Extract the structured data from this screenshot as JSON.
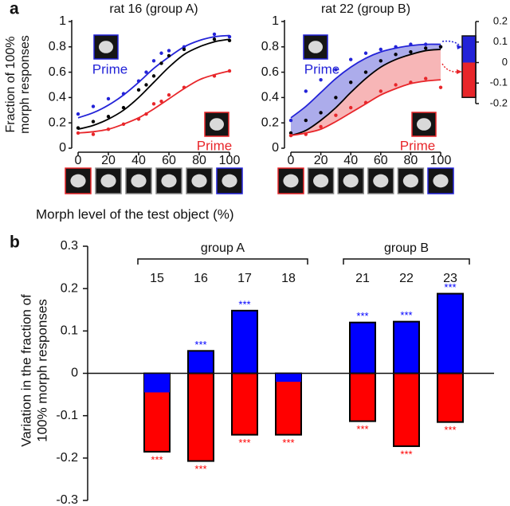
{
  "panels": [
    "a",
    "b"
  ],
  "chart_data": [
    {
      "type": "line",
      "title": "rat 16 (group A)",
      "ylabel": [
        "Fraction of 100%",
        "morph responses"
      ],
      "xlabel": "Morph level of the test object (%)",
      "x": [
        0,
        10,
        20,
        30,
        40,
        45,
        50,
        55,
        60,
        70,
        90,
        100
      ],
      "fit_x": [
        0,
        10,
        20,
        30,
        40,
        50,
        60,
        70,
        80,
        90,
        100
      ],
      "xlim": [
        0,
        100
      ],
      "ylim": [
        0,
        1
      ],
      "xticks": [
        0,
        20,
        40,
        60,
        80,
        100
      ],
      "yticks": [
        0,
        0.2,
        0.4,
        0.6,
        0.8,
        1
      ],
      "shade": false,
      "series": [
        {
          "name": "Prime",
          "color": "#2323d8",
          "values": [
            0.27,
            0.33,
            0.39,
            0.43,
            0.53,
            0.6,
            0.69,
            0.75,
            0.77,
            0.8,
            0.9,
            0.88
          ],
          "fit": [
            0.24,
            0.28,
            0.34,
            0.42,
            0.52,
            0.63,
            0.72,
            0.8,
            0.85,
            0.88,
            0.89
          ]
        },
        {
          "color": "#000000",
          "values": [
            0.16,
            0.21,
            0.25,
            0.32,
            0.46,
            0.5,
            0.57,
            0.67,
            0.73,
            0.78,
            0.86,
            0.85
          ],
          "fit": [
            0.15,
            0.18,
            0.23,
            0.3,
            0.4,
            0.52,
            0.64,
            0.74,
            0.8,
            0.84,
            0.86
          ]
        },
        {
          "name": "Prime",
          "color": "#e8262a",
          "values": [
            0.12,
            0.11,
            0.15,
            0.19,
            0.23,
            0.27,
            0.35,
            0.37,
            0.42,
            0.48,
            0.57,
            0.61
          ],
          "fit": [
            0.12,
            0.13,
            0.15,
            0.19,
            0.24,
            0.31,
            0.39,
            0.47,
            0.54,
            0.58,
            0.61
          ]
        }
      ]
    },
    {
      "type": "line",
      "title": "rat 22 (group B)",
      "x": [
        0,
        10,
        20,
        30,
        40,
        50,
        60,
        70,
        80,
        90,
        100
      ],
      "fit_x": [
        0,
        10,
        20,
        30,
        40,
        50,
        60,
        70,
        80,
        90,
        100
      ],
      "xlim": [
        0,
        100
      ],
      "ylim": [
        0,
        1
      ],
      "xticks": [
        0,
        20,
        40,
        60,
        80,
        100
      ],
      "yticks": [
        0,
        0.2,
        0.4,
        0.6,
        0.8,
        1
      ],
      "shade": true,
      "series": [
        {
          "name": "Prime",
          "color": "#2323d8",
          "shade_color": "#9d9de8",
          "values": [
            0.22,
            0.45,
            0.54,
            0.62,
            0.7,
            0.75,
            0.78,
            0.8,
            0.82,
            0.82,
            0.8
          ],
          "fit": [
            0.24,
            0.33,
            0.44,
            0.55,
            0.64,
            0.71,
            0.76,
            0.79,
            0.81,
            0.82,
            0.82
          ]
        },
        {
          "color": "#000000",
          "values": [
            0.12,
            0.22,
            0.28,
            0.4,
            0.52,
            0.6,
            0.69,
            0.74,
            0.76,
            0.79,
            0.8
          ],
          "fit": [
            0.1,
            0.14,
            0.22,
            0.32,
            0.44,
            0.55,
            0.64,
            0.7,
            0.74,
            0.77,
            0.78
          ]
        },
        {
          "name": "Prime",
          "color": "#e8262a",
          "shade_color": "#f6a9aa",
          "values": [
            0.1,
            0.11,
            0.17,
            0.26,
            0.32,
            0.36,
            0.45,
            0.5,
            0.52,
            0.55,
            0.48
          ],
          "fit": [
            0.1,
            0.12,
            0.15,
            0.21,
            0.28,
            0.35,
            0.42,
            0.47,
            0.51,
            0.53,
            0.54
          ]
        }
      ]
    },
    {
      "type": "colorbar",
      "ylim": [
        -0.2,
        0.2
      ],
      "yticks": [
        0.2,
        0.1,
        0,
        -0.1,
        -0.2
      ],
      "clim": [
        -0.17,
        0.13
      ],
      "colors": [
        "#e8262a",
        "#2323d8"
      ]
    },
    {
      "type": "bar",
      "ylabel": [
        "Variation in the fraction of",
        "100% morph responses"
      ],
      "groups": [
        {
          "name": "group A",
          "categories": [
            "15",
            "16",
            "17",
            "18"
          ]
        },
        {
          "name": "group B",
          "categories": [
            "21",
            "22",
            "23"
          ]
        }
      ],
      "ylim": [
        -0.3,
        0.3
      ],
      "yticks": [
        0.3,
        0.2,
        0.1,
        0,
        -0.1,
        -0.2,
        -0.3
      ],
      "series": [
        {
          "color": "#ff0000",
          "values": [
            -0.185,
            -0.207,
            -0.145,
            -0.145,
            -0.113,
            -0.172,
            -0.115
          ],
          "significance": [
            "***",
            "***",
            "***",
            "***",
            "***",
            "***",
            "***"
          ]
        },
        {
          "color": "#0000ff",
          "values": [
            -0.045,
            0.053,
            0.148,
            -0.02,
            0.12,
            0.122,
            0.188
          ],
          "significance": [
            null,
            "***",
            "***",
            null,
            "***",
            "***",
            "***"
          ]
        }
      ]
    }
  ]
}
